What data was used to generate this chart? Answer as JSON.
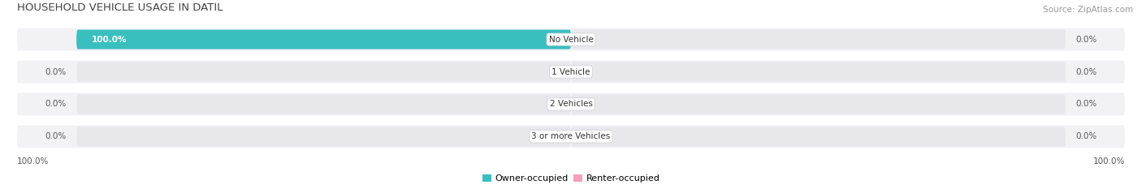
{
  "title": "HOUSEHOLD VEHICLE USAGE IN DATIL",
  "source": "Source: ZipAtlas.com",
  "categories": [
    "No Vehicle",
    "1 Vehicle",
    "2 Vehicles",
    "3 or more Vehicles"
  ],
  "owner_values": [
    100.0,
    0.0,
    0.0,
    0.0
  ],
  "renter_values": [
    0.0,
    0.0,
    0.0,
    0.0
  ],
  "owner_color": "#3abfbf",
  "renter_color": "#f4a0b8",
  "bar_bg_color": "#e8e8ec",
  "row_bg_color": "#f2f2f5",
  "title_color": "#444444",
  "label_color": "#555555",
  "source_color": "#999999",
  "axis_label_left": "100.0%",
  "axis_label_right": "100.0%",
  "max_value": 100.0,
  "figsize": [
    14.06,
    2.33
  ],
  "dpi": 100
}
